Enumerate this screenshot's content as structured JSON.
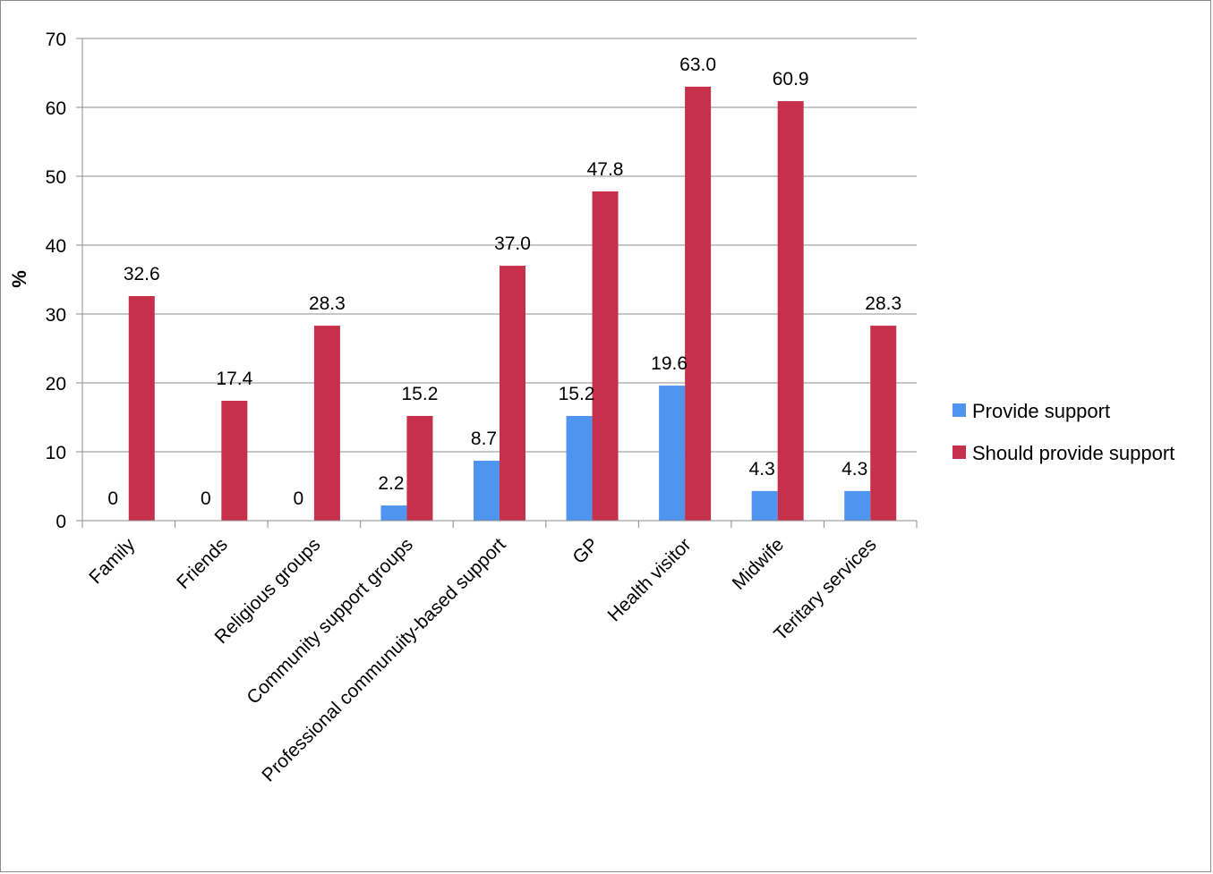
{
  "chart_data": {
    "type": "bar",
    "ylabel": "%",
    "xlabel": "",
    "ylim": [
      0,
      70
    ],
    "yticks": [
      0,
      10,
      20,
      30,
      40,
      50,
      60,
      70
    ],
    "grid": true,
    "legend_position": "right",
    "categories": [
      "Family",
      "Friends",
      "Religious groups",
      "Community support groups",
      "Professional communuity-based support",
      "GP",
      "Health visitor",
      "Midwife",
      "Teritary services"
    ],
    "series": [
      {
        "name": "Provide support",
        "color": "#4f94ef",
        "values": [
          0,
          0,
          0,
          2.2,
          8.7,
          15.2,
          19.6,
          4.3,
          4.3
        ],
        "labels": [
          "0",
          "0",
          "0",
          "2.2",
          "8.7",
          "15.2",
          "19.6",
          "4.3",
          "4.3"
        ]
      },
      {
        "name": "Should provide support",
        "color": "#c6304a",
        "values": [
          32.6,
          17.4,
          28.3,
          15.2,
          37.0,
          47.8,
          63.0,
          60.9,
          28.3
        ],
        "labels": [
          "32.6",
          "17.4",
          "28.3",
          "15.2",
          "37.0",
          "47.8",
          "63.0",
          "60.9",
          "28.3"
        ]
      }
    ]
  }
}
